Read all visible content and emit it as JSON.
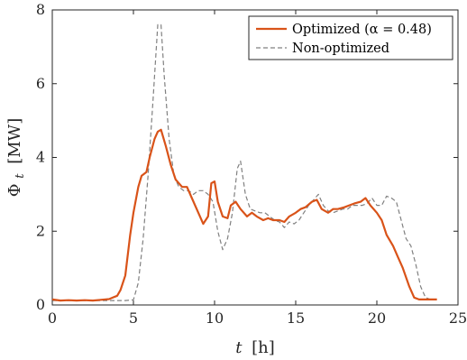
{
  "chart_data": {
    "type": "line",
    "title": "",
    "xlabel": {
      "symbol": "t",
      "unit": "[h]"
    },
    "ylabel": {
      "symbol": "Φ",
      "subscript": "t",
      "unit": "[MW]"
    },
    "xlim": [
      0,
      25
    ],
    "ylim": [
      0,
      8
    ],
    "xticks": [
      0,
      5,
      10,
      15,
      20,
      25
    ],
    "yticks": [
      0,
      2,
      4,
      6,
      8
    ],
    "grid": false,
    "legend_position": "top-right",
    "series": [
      {
        "name": "Optimized (α = 0.48)",
        "color": "#d95319",
        "style": "solid",
        "x": [
          0,
          0.5,
          1,
          1.5,
          2,
          2.5,
          3,
          3.5,
          4,
          4.2,
          4.5,
          4.8,
          5,
          5.3,
          5.5,
          5.8,
          6,
          6.3,
          6.5,
          6.7,
          7,
          7.3,
          7.6,
          8,
          8.3,
          8.6,
          9,
          9.3,
          9.6,
          9.8,
          10,
          10.2,
          10.5,
          10.8,
          11,
          11.3,
          11.6,
          12,
          12.3,
          12.6,
          13,
          13.3,
          13.6,
          14,
          14.3,
          14.6,
          15,
          15.3,
          15.6,
          16,
          16.3,
          16.6,
          17,
          17.3,
          17.6,
          18,
          18.3,
          18.6,
          19,
          19.3,
          19.6,
          20,
          20.3,
          20.6,
          21,
          21.3,
          21.6,
          22,
          22.3,
          22.6,
          23,
          23.3,
          23.7
        ],
        "y": [
          0.15,
          0.12,
          0.13,
          0.12,
          0.13,
          0.12,
          0.14,
          0.16,
          0.25,
          0.4,
          0.8,
          1.9,
          2.5,
          3.2,
          3.5,
          3.6,
          4.0,
          4.5,
          4.7,
          4.75,
          4.3,
          3.8,
          3.4,
          3.2,
          3.2,
          2.9,
          2.5,
          2.2,
          2.4,
          3.3,
          3.35,
          2.8,
          2.4,
          2.35,
          2.7,
          2.8,
          2.6,
          2.4,
          2.5,
          2.4,
          2.3,
          2.35,
          2.3,
          2.3,
          2.25,
          2.4,
          2.5,
          2.6,
          2.65,
          2.8,
          2.85,
          2.6,
          2.5,
          2.6,
          2.6,
          2.65,
          2.7,
          2.75,
          2.8,
          2.9,
          2.7,
          2.5,
          2.3,
          1.9,
          1.6,
          1.3,
          1.0,
          0.5,
          0.2,
          0.15,
          0.15,
          0.15,
          0.15
        ]
      },
      {
        "name": "Non-optimized",
        "color": "#808080",
        "style": "dashed",
        "x": [
          0,
          0.5,
          1,
          1.5,
          2,
          2.5,
          3,
          3.5,
          4,
          4.5,
          5,
          5.3,
          5.6,
          5.9,
          6.2,
          6.5,
          6.7,
          6.9,
          7.2,
          7.5,
          7.8,
          8.1,
          8.4,
          8.7,
          9,
          9.3,
          9.6,
          9.9,
          10.2,
          10.5,
          10.8,
          11.1,
          11.4,
          11.6,
          11.9,
          12.2,
          12.5,
          12.8,
          13.1,
          13.4,
          13.7,
          14,
          14.3,
          14.6,
          14.9,
          15.2,
          15.5,
          15.8,
          16.1,
          16.4,
          16.7,
          17,
          17.3,
          17.6,
          17.9,
          18.2,
          18.5,
          18.8,
          19.1,
          19.4,
          19.7,
          20,
          20.3,
          20.6,
          20.9,
          21.2,
          21.5,
          21.8,
          22.1,
          22.4,
          22.7,
          23,
          23.3,
          23.7
        ],
        "y": [
          0.12,
          0.12,
          0.12,
          0.12,
          0.12,
          0.12,
          0.12,
          0.12,
          0.12,
          0.12,
          0.14,
          0.6,
          1.8,
          3.5,
          5.5,
          7.6,
          7.6,
          6.2,
          4.5,
          3.5,
          3.2,
          3.1,
          3.1,
          3.0,
          3.1,
          3.1,
          3.0,
          2.8,
          2.0,
          1.5,
          1.8,
          2.5,
          3.7,
          3.9,
          3.0,
          2.6,
          2.55,
          2.5,
          2.5,
          2.4,
          2.3,
          2.25,
          2.1,
          2.25,
          2.2,
          2.3,
          2.5,
          2.7,
          2.85,
          3.0,
          2.7,
          2.55,
          2.5,
          2.55,
          2.6,
          2.6,
          2.7,
          2.7,
          2.7,
          2.75,
          2.9,
          2.7,
          2.7,
          2.95,
          2.9,
          2.8,
          2.3,
          1.8,
          1.6,
          1.1,
          0.5,
          0.2,
          0.15,
          0.15
        ]
      }
    ]
  }
}
